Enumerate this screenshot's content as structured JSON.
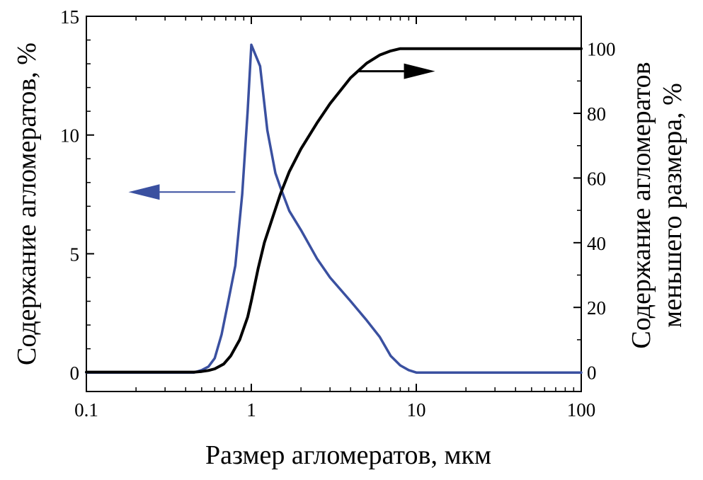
{
  "chart_data": {
    "type": "line",
    "xlabel": "Размер агломератов, мкм",
    "ylabel_left": "Содержание агломератов, %",
    "ylabel_right_lines": [
      "Содержание агломератов",
      "меньшего размера, %"
    ],
    "x_scale": "log",
    "xlim": [
      0.1,
      100
    ],
    "ylim_left": [
      -0.8,
      15
    ],
    "ylim_right": [
      -6,
      110
    ],
    "x_ticks": [
      {
        "value": 0.1,
        "label": "0.1"
      },
      {
        "value": 1,
        "label": "1"
      },
      {
        "value": 10,
        "label": "10"
      },
      {
        "value": 100,
        "label": "100"
      }
    ],
    "y_ticks_left": [
      {
        "value": 0,
        "label": "0"
      },
      {
        "value": 5,
        "label": "5"
      },
      {
        "value": 10,
        "label": "10"
      },
      {
        "value": 15,
        "label": "15"
      }
    ],
    "y_ticks_right": [
      {
        "value": 0,
        "label": "0"
      },
      {
        "value": 20,
        "label": "20"
      },
      {
        "value": 40,
        "label": "40"
      },
      {
        "value": 60,
        "label": "60"
      },
      {
        "value": 80,
        "label": "80"
      },
      {
        "value": 100,
        "label": "100"
      }
    ],
    "grid": false,
    "series": [
      {
        "axis": "left",
        "color": "#3a50a0",
        "points": [
          [
            0.1,
            0
          ],
          [
            0.45,
            0
          ],
          [
            0.5,
            0.1
          ],
          [
            0.55,
            0.25
          ],
          [
            0.6,
            0.6
          ],
          [
            0.66,
            1.6
          ],
          [
            0.72,
            2.9
          ],
          [
            0.8,
            4.5
          ],
          [
            0.88,
            7.5
          ],
          [
            0.95,
            11.0
          ],
          [
            1.0,
            13.8
          ],
          [
            1.13,
            12.9
          ],
          [
            1.25,
            10.2
          ],
          [
            1.4,
            8.4
          ],
          [
            1.5,
            7.8
          ],
          [
            1.7,
            6.8
          ],
          [
            2.0,
            6.0
          ],
          [
            2.5,
            4.8
          ],
          [
            3.0,
            4.0
          ],
          [
            4.0,
            3.0
          ],
          [
            5.0,
            2.2
          ],
          [
            6.0,
            1.5
          ],
          [
            7.0,
            0.7
          ],
          [
            8.0,
            0.3
          ],
          [
            9.0,
            0.1
          ],
          [
            10.0,
            0
          ],
          [
            100,
            0
          ]
        ]
      },
      {
        "axis": "right",
        "color": "#000000",
        "points": [
          [
            0.1,
            0
          ],
          [
            0.3,
            0
          ],
          [
            0.45,
            0
          ],
          [
            0.5,
            0.2
          ],
          [
            0.55,
            0.5
          ],
          [
            0.6,
            1.0
          ],
          [
            0.68,
            2.5
          ],
          [
            0.75,
            5
          ],
          [
            0.85,
            10
          ],
          [
            0.95,
            17
          ],
          [
            1.0,
            22
          ],
          [
            1.1,
            32
          ],
          [
            1.2,
            40
          ],
          [
            1.35,
            48
          ],
          [
            1.5,
            55
          ],
          [
            1.7,
            62
          ],
          [
            2.0,
            69
          ],
          [
            2.5,
            77
          ],
          [
            3.0,
            83
          ],
          [
            4.0,
            91
          ],
          [
            5.0,
            95.5
          ],
          [
            6.0,
            98
          ],
          [
            7.0,
            99.3
          ],
          [
            8.0,
            100
          ],
          [
            10,
            100
          ],
          [
            100,
            100
          ]
        ]
      }
    ],
    "arrows": [
      {
        "axis": "left",
        "direction": "left",
        "color": "#3a50a0",
        "from_x": 0.8,
        "to_x": 0.18,
        "y": 7.6
      },
      {
        "axis": "right",
        "direction": "right",
        "color": "#000000",
        "from_x": 4.5,
        "to_x": 13.0,
        "y": 93
      }
    ]
  }
}
